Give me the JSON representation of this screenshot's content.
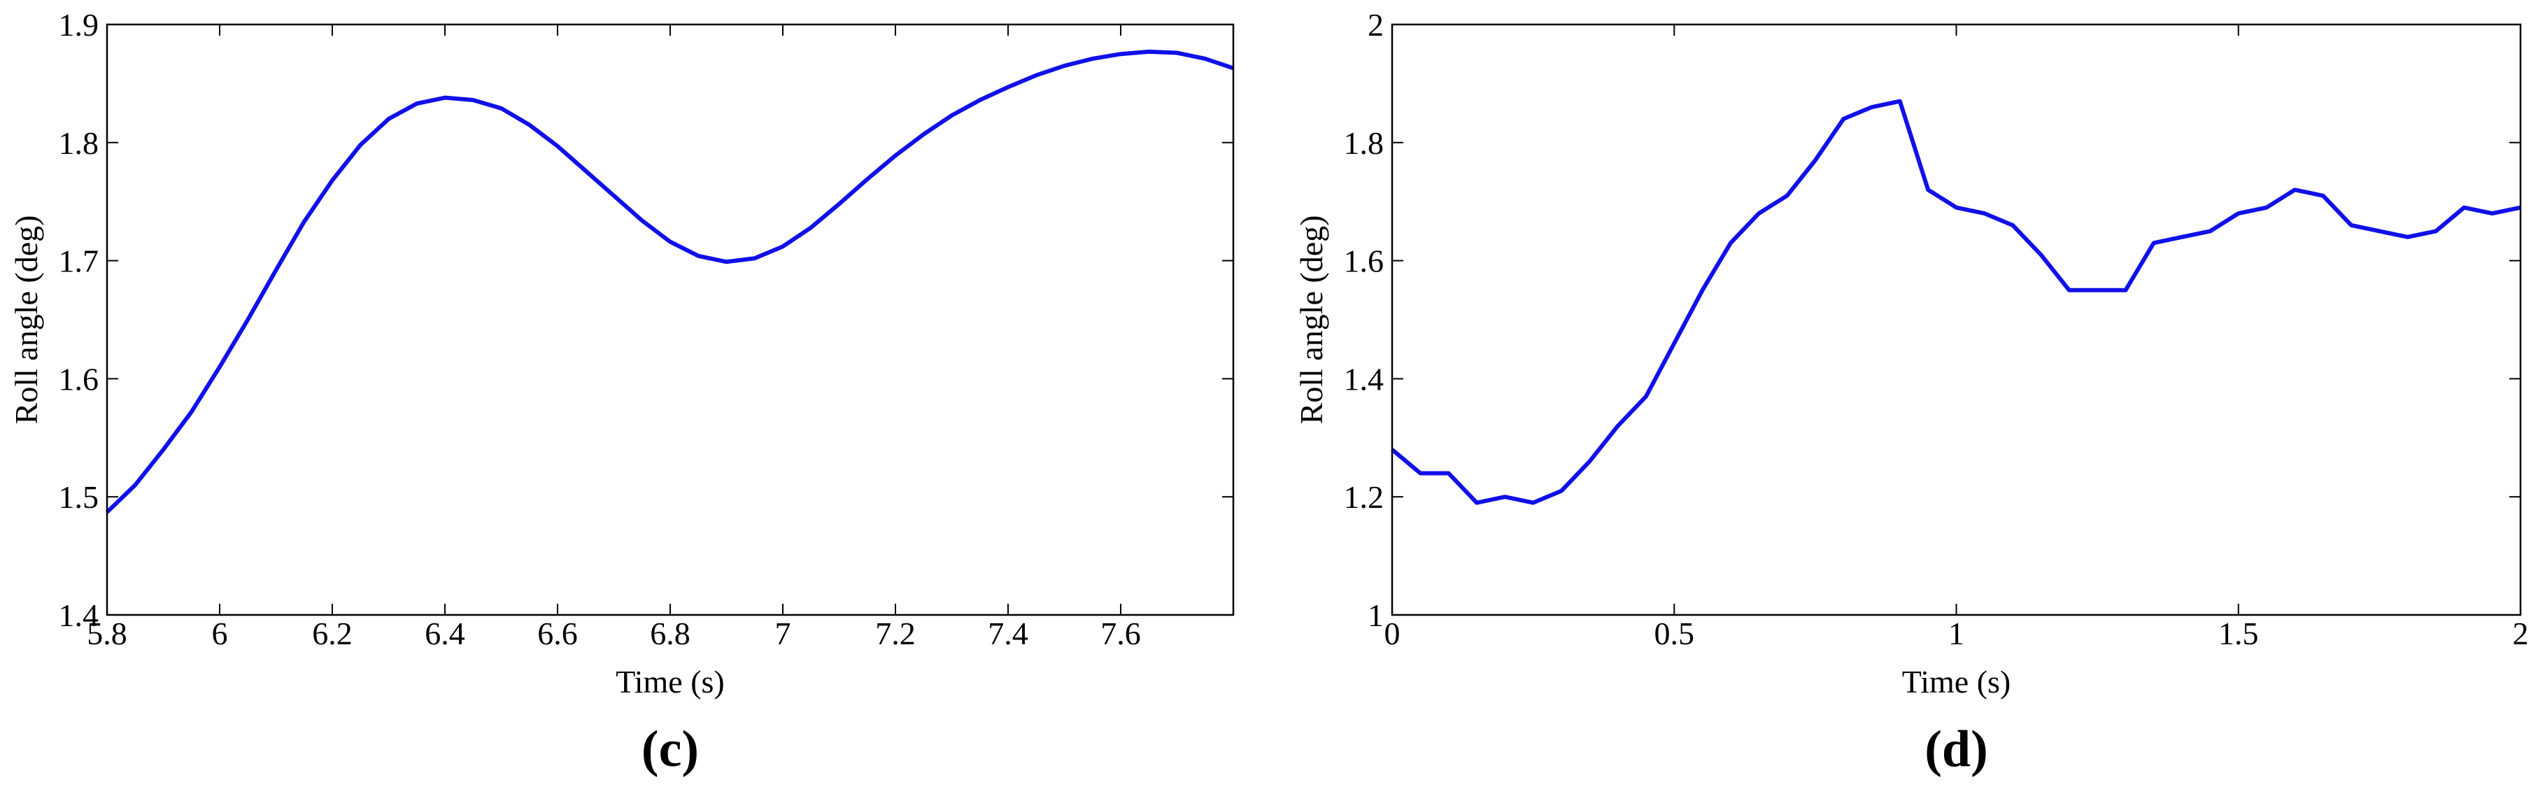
{
  "chart_data": [
    {
      "type": "line",
      "caption": "(c)",
      "xlabel": "Time (s)",
      "ylabel": "Roll angle (deg)",
      "color": "#1010e8",
      "xlim": [
        5.8,
        7.8
      ],
      "xticks": [
        5.8,
        6,
        6.2,
        6.4,
        6.6,
        6.8,
        7,
        7.2,
        7.4,
        7.6
      ],
      "ylim": [
        1.4,
        1.9
      ],
      "yticks": [
        1.4,
        1.5,
        1.6,
        1.7,
        1.8,
        1.9
      ],
      "x": [
        5.8,
        5.85,
        5.9,
        5.95,
        6.0,
        6.05,
        6.1,
        6.15,
        6.2,
        6.25,
        6.3,
        6.35,
        6.4,
        6.45,
        6.5,
        6.55,
        6.6,
        6.65,
        6.7,
        6.75,
        6.8,
        6.85,
        6.9,
        6.95,
        7.0,
        7.05,
        7.1,
        7.15,
        7.2,
        7.25,
        7.3,
        7.35,
        7.4,
        7.45,
        7.5,
        7.55,
        7.6,
        7.65,
        7.7,
        7.75,
        7.8
      ],
      "values": [
        1.487,
        1.51,
        1.54,
        1.572,
        1.61,
        1.65,
        1.692,
        1.733,
        1.768,
        1.798,
        1.82,
        1.833,
        1.838,
        1.836,
        1.829,
        1.815,
        1.797,
        1.776,
        1.755,
        1.734,
        1.716,
        1.704,
        1.699,
        1.702,
        1.712,
        1.728,
        1.748,
        1.769,
        1.789,
        1.807,
        1.823,
        1.836,
        1.847,
        1.857,
        1.865,
        1.871,
        1.875,
        1.877,
        1.876,
        1.871,
        1.863
      ]
    },
    {
      "type": "line",
      "caption": "(d)",
      "xlabel": "Time (s)",
      "ylabel": "Roll angle (deg)",
      "color": "#1010e8",
      "xlim": [
        0,
        2
      ],
      "xticks": [
        0,
        0.5,
        1,
        1.5,
        2
      ],
      "ylim": [
        1,
        2
      ],
      "yticks": [
        1,
        1.2,
        1.4,
        1.6,
        1.8,
        2
      ],
      "x": [
        0,
        0.05,
        0.1,
        0.15,
        0.2,
        0.25,
        0.3,
        0.35,
        0.4,
        0.45,
        0.5,
        0.55,
        0.6,
        0.65,
        0.7,
        0.75,
        0.8,
        0.85,
        0.9,
        0.95,
        1.0,
        1.05,
        1.1,
        1.15,
        1.2,
        1.25,
        1.3,
        1.35,
        1.4,
        1.45,
        1.5,
        1.55,
        1.6,
        1.65,
        1.7,
        1.75,
        1.8,
        1.85,
        1.9,
        1.95,
        2.0
      ],
      "values": [
        1.28,
        1.24,
        1.24,
        1.19,
        1.2,
        1.19,
        1.21,
        1.26,
        1.32,
        1.37,
        1.46,
        1.55,
        1.63,
        1.68,
        1.71,
        1.77,
        1.84,
        1.86,
        1.87,
        1.72,
        1.69,
        1.68,
        1.66,
        1.61,
        1.55,
        1.55,
        1.55,
        1.63,
        1.64,
        1.65,
        1.68,
        1.69,
        1.72,
        1.71,
        1.66,
        1.65,
        1.64,
        1.65,
        1.69,
        1.68,
        1.69
      ]
    }
  ]
}
